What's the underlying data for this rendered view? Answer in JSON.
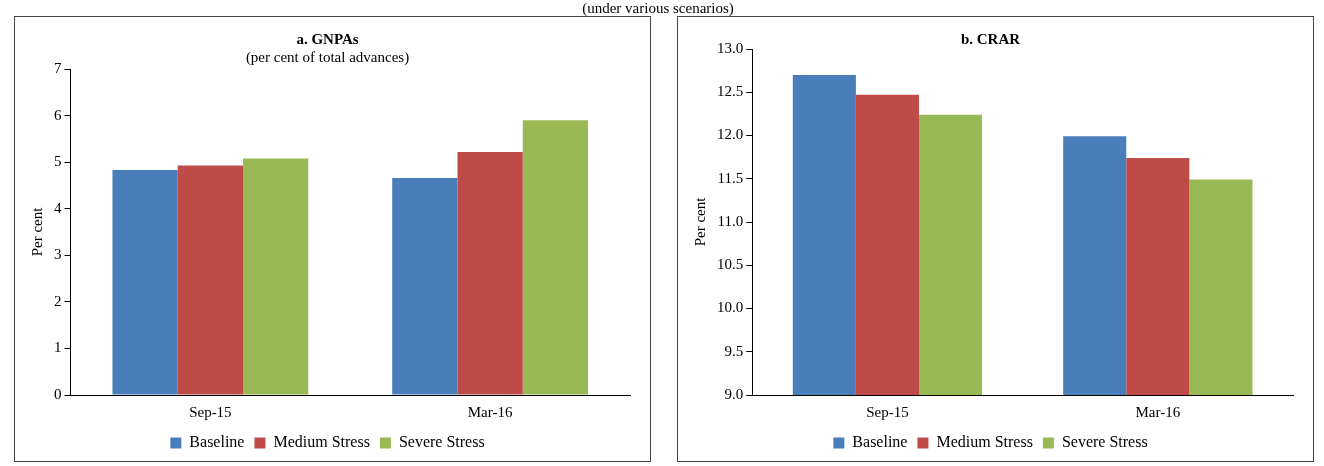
{
  "chart_data": [
    {
      "type": "bar",
      "title": "a. GNPAs",
      "subtitle": "(per cent of total advances)",
      "ylabel": "Per cent",
      "annotations": [
        "(under various scenarios)"
      ],
      "categories": [
        "Sep-15",
        "Mar-16"
      ],
      "series": [
        {
          "name": "Baseline",
          "color": "#4a7ebb",
          "values": [
            4.83,
            4.66
          ]
        },
        {
          "name": "Medium Stress",
          "color": "#be4b48",
          "values": [
            4.93,
            5.22
          ]
        },
        {
          "name": "Severe Stress",
          "color": "#98b954",
          "values": [
            5.08,
            5.9
          ]
        }
      ],
      "ylim": [
        0,
        7
      ],
      "yticks": [
        0,
        1,
        2,
        3,
        4,
        5,
        6,
        7
      ],
      "grid": false,
      "legend": "bottom"
    },
    {
      "type": "bar",
      "title": "b. CRAR",
      "ylabel": "Per cent",
      "categories": [
        "Sep-15",
        "Mar-16"
      ],
      "series": [
        {
          "name": "Baseline",
          "color": "#4a7ebb",
          "values": [
            12.7,
            11.99
          ]
        },
        {
          "name": "Medium Stress",
          "color": "#be4b48",
          "values": [
            12.47,
            11.74
          ]
        },
        {
          "name": "Severe Stress",
          "color": "#98b954",
          "values": [
            12.24,
            11.49
          ]
        }
      ],
      "ylim": [
        9,
        13
      ],
      "yticks": [
        {
          "value": 9,
          "label": "9.0"
        },
        {
          "value": 9.5,
          "label": "9.5"
        },
        {
          "value": 10,
          "label": "10.0"
        },
        {
          "value": 10.5,
          "label": "10.5"
        },
        {
          "value": 11,
          "label": "11.0"
        },
        {
          "value": 11.5,
          "label": "11.5"
        },
        {
          "value": 12,
          "label": "12.0"
        },
        {
          "value": 12.5,
          "label": "12.5"
        },
        {
          "value": 13,
          "label": "13.0"
        }
      ],
      "grid": false,
      "legend": "bottom"
    }
  ]
}
